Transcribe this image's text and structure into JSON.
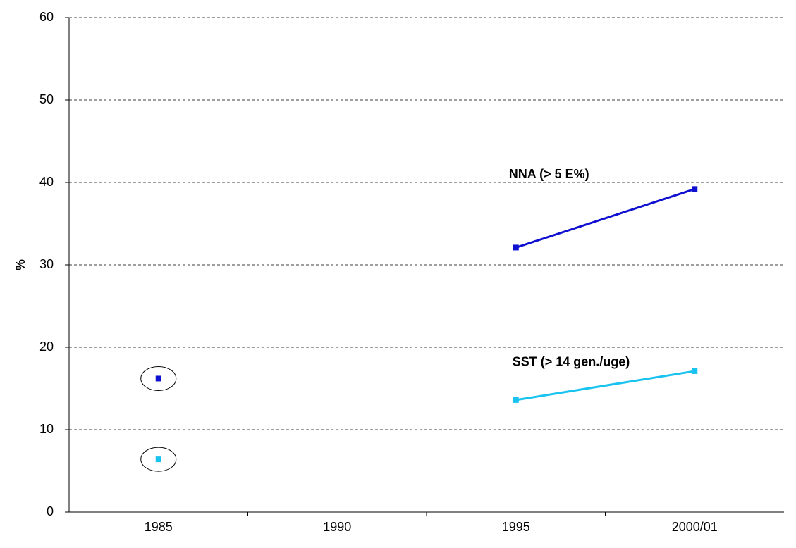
{
  "chart_data": {
    "type": "line",
    "y_label": "%",
    "categories": [
      "1985",
      "1990",
      "1995",
      "2000/01"
    ],
    "series": [
      {
        "name": "NNA (> 5 E%)",
        "color": "#1010d0",
        "values": [
          16.2,
          null,
          32.1,
          39.2
        ]
      },
      {
        "name": "SST (> 14 gen./uge)",
        "color": "#19c3ef",
        "values": [
          6.4,
          null,
          13.6,
          17.1
        ]
      }
    ],
    "ylim": [
      0,
      60
    ],
    "yticks": [
      0,
      10,
      20,
      30,
      40,
      50,
      60
    ],
    "grid": true
  }
}
